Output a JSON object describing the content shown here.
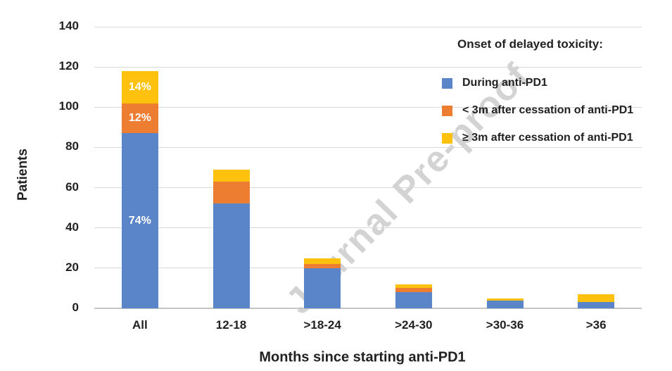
{
  "watermark": {
    "text": "Journal Pre-proof"
  },
  "colors": {
    "blue": "#5B85C9",
    "orange": "#ED7D31",
    "yellow": "#FEC10D",
    "gridline": "#D9D9D9",
    "axis_line": "#C6C6C6",
    "text": "#212121",
    "watermark_color": "#D3D3D3",
    "segment_label_color": "#FFFFFF"
  },
  "chart_data": {
    "type": "bar",
    "stacked": true,
    "title": "",
    "xlabel": "Months since starting anti-PD1",
    "ylabel": "Patients",
    "ylim": [
      0,
      140
    ],
    "yticks": [
      0,
      20,
      40,
      60,
      80,
      100,
      120,
      140
    ],
    "grid": true,
    "categories": [
      "All",
      "12-18",
      ">18-24",
      ">24-30",
      ">30-36",
      ">36"
    ],
    "series": [
      {
        "name": "During anti-PD1",
        "color_key": "blue",
        "values": [
          87,
          52,
          20,
          8,
          4,
          3
        ]
      },
      {
        "name": "< 3m after cessation of anti-PD1",
        "color_key": "orange",
        "values": [
          15,
          11,
          2,
          2,
          0,
          0
        ]
      },
      {
        "name": "≥ 3m after cessation of anti-PD1",
        "color_key": "yellow",
        "values": [
          16,
          6,
          3,
          2,
          1,
          4
        ]
      }
    ],
    "category_totals": [
      118,
      69,
      25,
      12,
      5,
      7
    ],
    "segment_labels": [
      {
        "category_index": 0,
        "series_index": 0,
        "text": "74%"
      },
      {
        "category_index": 0,
        "series_index": 1,
        "text": "12%"
      },
      {
        "category_index": 0,
        "series_index": 2,
        "text": "14%"
      }
    ],
    "legend_title": "Onset of delayed toxicity:",
    "legend_position": "top-right"
  }
}
